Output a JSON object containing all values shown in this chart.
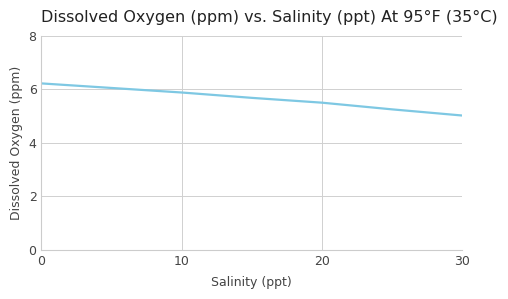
{
  "title": "Dissolved Oxygen (ppm) vs. Salinity (ppt) At 95°F (35°C)",
  "xlabel": "Salinity (ppt)",
  "ylabel": "Dissolved Oxygen (ppm)",
  "x_data": [
    0,
    5,
    10,
    15,
    20,
    25,
    30
  ],
  "y_data": [
    6.22,
    6.05,
    5.88,
    5.68,
    5.5,
    5.25,
    5.02
  ],
  "line_color": "#7ec8e3",
  "xlim": [
    0,
    30
  ],
  "ylim": [
    0,
    8
  ],
  "xticks": [
    0,
    10,
    20,
    30
  ],
  "yticks": [
    0,
    2,
    4,
    6,
    8
  ],
  "title_fontsize": 11.5,
  "label_fontsize": 9,
  "tick_fontsize": 9,
  "background_color": "#ffffff",
  "grid_color": "#d0d0d0",
  "line_width": 1.6
}
